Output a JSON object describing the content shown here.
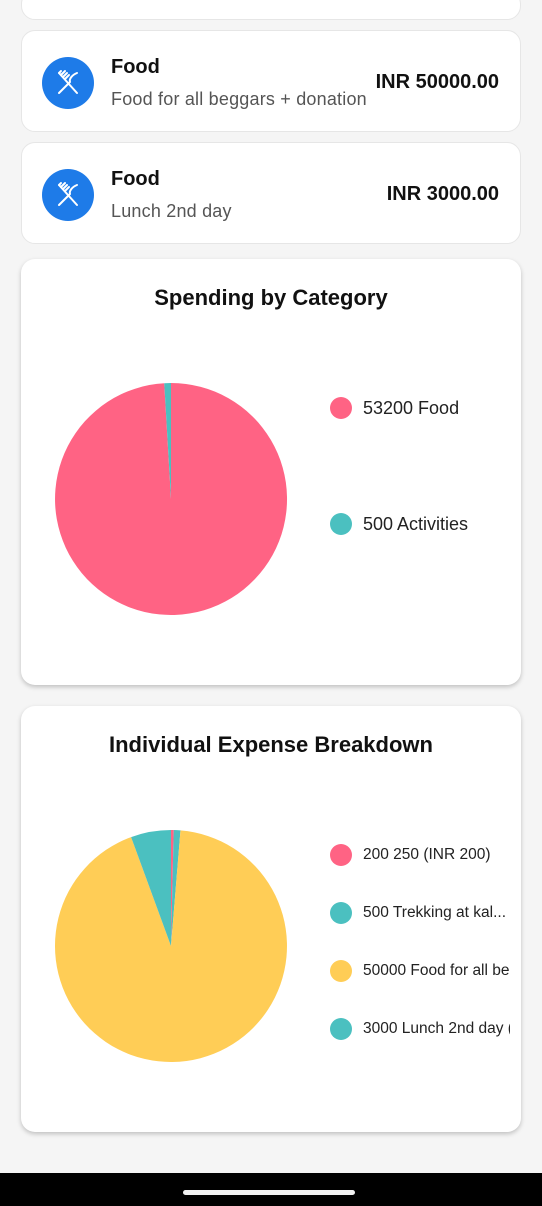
{
  "expenses": [
    {
      "category": "Food",
      "description": "Food for all beggars + donation",
      "amount": "INR 50000.00",
      "icon": "fork-knife-icon"
    },
    {
      "category": "Food",
      "description": "Lunch 2nd day",
      "amount": "INR 3000.00",
      "icon": "fork-knife-icon"
    }
  ],
  "colors": {
    "icon_circle": "#1e7be8",
    "pink": "#ff6384",
    "teal": "#4bc0c0",
    "yellow": "#ffcd56"
  },
  "chart_data": [
    {
      "type": "pie",
      "title": "Spending by Category",
      "labels": [
        "53200 Food",
        "500 Activities"
      ],
      "values": [
        53200,
        500
      ],
      "colors": [
        "#ff6384",
        "#4bc0c0"
      ],
      "legend": "right"
    },
    {
      "type": "pie",
      "title": "Individual Expense Breakdown",
      "labels": [
        "200 250 (INR 200)",
        "500 Trekking at kal...",
        "50000 Food for all be",
        "3000 Lunch 2nd day ("
      ],
      "values": [
        200,
        500,
        50000,
        3000
      ],
      "colors": [
        "#ff6384",
        "#4bc0c0",
        "#ffcd56",
        "#4bc0c0"
      ],
      "legend": "right"
    }
  ]
}
